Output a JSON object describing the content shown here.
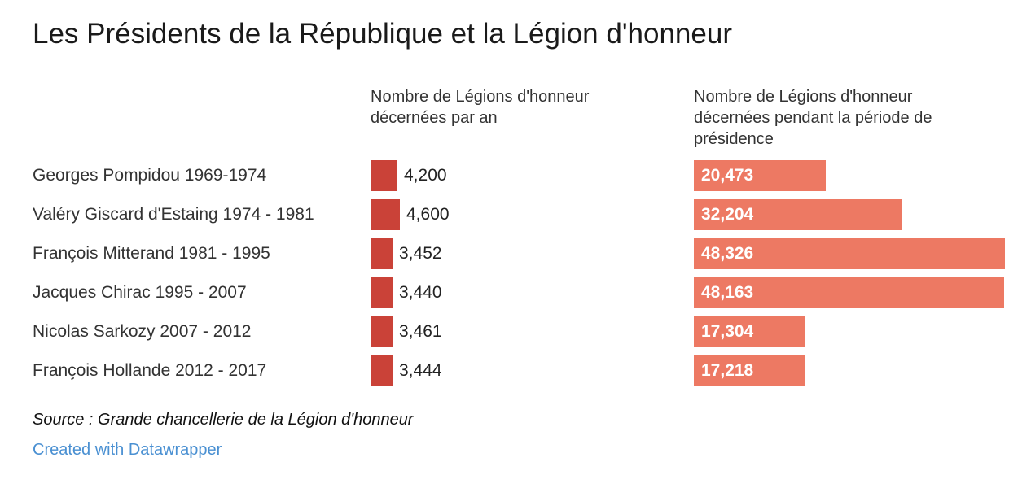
{
  "header": {
    "title": "Les Présidents de la République et la Légion d'honneur"
  },
  "chart_data": {
    "type": "bar",
    "orientation": "horizontal",
    "title": "Les Présidents de la République et la Légion d'honneur",
    "categories": [
      "Georges Pompidou 1969-1974",
      "Valéry Giscard d'Estaing 1974 - 1981",
      "François Mitterand 1981 - 1995",
      "Jacques Chirac 1995 - 2007",
      "Nicolas Sarkozy 2007 - 2012",
      "François Hollande 2012 - 2017"
    ],
    "series": [
      {
        "name": "Nombre de Légions d'honneur décernées par an",
        "values": [
          4200,
          4600,
          3452,
          3440,
          3461,
          3444
        ],
        "labels": [
          "4,200",
          "4,600",
          "3,452",
          "3,440",
          "3,461",
          "3,444"
        ],
        "color": "#ca4238",
        "value_label_position": "outside"
      },
      {
        "name": "Nombre de Légions d'honneur décernées pendant la période de présidence",
        "values": [
          20473,
          32204,
          48326,
          48163,
          17304,
          17218
        ],
        "labels": [
          "20,473",
          "32,204",
          "48,326",
          "48,163",
          "17,304",
          "17,218"
        ],
        "color": "#ed7963",
        "value_label_position": "inside"
      }
    ],
    "xlim": [
      0,
      48326
    ],
    "grid": false,
    "legend_position": "column-headers"
  },
  "footer": {
    "source": "Source : Grande chancellerie de la Légion d'honneur",
    "credit": "Created with Datawrapper",
    "credit_color": "#4a90d2"
  }
}
